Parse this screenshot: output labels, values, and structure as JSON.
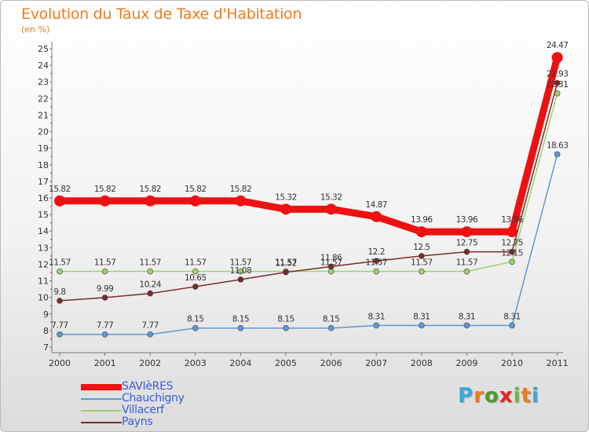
{
  "header": {
    "title": "Evolution du Taux de Taxe d'Habitation",
    "subtitle": "(en %)"
  },
  "logo": {
    "letters": [
      "P",
      "r",
      "o",
      "x",
      "i",
      "t",
      "i"
    ],
    "colors": [
      "#3ea8dd",
      "#ee7b22",
      "#4f9a2e",
      "#e52421",
      "#6bb93b",
      "#ee7b22",
      "#3ea8dd"
    ]
  },
  "chart_data": {
    "type": "line",
    "title": "Evolution du Taux de Taxe d'Habitation",
    "ylabel": "(en %)",
    "x": [
      "2000",
      "2001",
      "2002",
      "2003",
      "2004",
      "2005",
      "2006",
      "2007",
      "2008",
      "2009",
      "2010",
      "2011"
    ],
    "yticks": [
      "7",
      "8",
      "9",
      "10",
      "11",
      "12",
      "13",
      "14",
      "15",
      "16",
      "17",
      "18",
      "19",
      "20",
      "21",
      "22",
      "23",
      "24",
      "25"
    ],
    "ylim": [
      7,
      25
    ],
    "series": [
      {
        "name": "SAVIèRES",
        "color": "#ee1111",
        "emphasis": true,
        "values": [
          15.82,
          15.82,
          15.82,
          15.82,
          15.82,
          15.32,
          15.32,
          14.87,
          13.96,
          13.96,
          13.96,
          24.47
        ],
        "labels": [
          "15.82",
          "15.82",
          "15.82",
          "15.82",
          "15.82",
          "15.32",
          "15.32",
          "14.87",
          "13.96",
          "13.96",
          "13.96",
          "24.47"
        ]
      },
      {
        "name": "Chauchigny",
        "color": "#5d9ad5",
        "emphasis": false,
        "values": [
          7.77,
          7.77,
          7.77,
          8.15,
          8.15,
          8.15,
          8.15,
          8.31,
          8.31,
          8.31,
          8.31,
          18.63
        ],
        "labels": [
          "7.77",
          "7.77",
          "7.77",
          "8.15",
          "8.15",
          "8.15",
          "8.15",
          "8.31",
          "8.31",
          "8.31",
          "8.31",
          "18.63"
        ]
      },
      {
        "name": "Villacerf",
        "color": "#9bd36a",
        "emphasis": false,
        "values": [
          11.57,
          11.57,
          11.57,
          11.57,
          11.57,
          11.57,
          11.57,
          11.57,
          11.57,
          11.57,
          12.15,
          22.31
        ],
        "labels": [
          "11.57",
          "11.57",
          "11.57",
          "11.57",
          "11.57",
          "11.57",
          "11.57",
          "11.57",
          "11.57",
          "11.57",
          "12.15",
          "22.31"
        ]
      },
      {
        "name": "Payns",
        "color": "#7a2b2b",
        "emphasis": false,
        "values": [
          9.8,
          9.99,
          10.24,
          10.65,
          11.08,
          11.52,
          11.86,
          12.2,
          12.5,
          12.75,
          12.75,
          22.93
        ],
        "labels": [
          "9.8",
          "9.99",
          "10.24",
          "10.65",
          "11.08",
          "11.52",
          "11.86",
          "12.2",
          "12.5",
          "12.75",
          "12.75",
          "22.93"
        ]
      }
    ],
    "legend_position": "bottom-left",
    "grid": false
  }
}
